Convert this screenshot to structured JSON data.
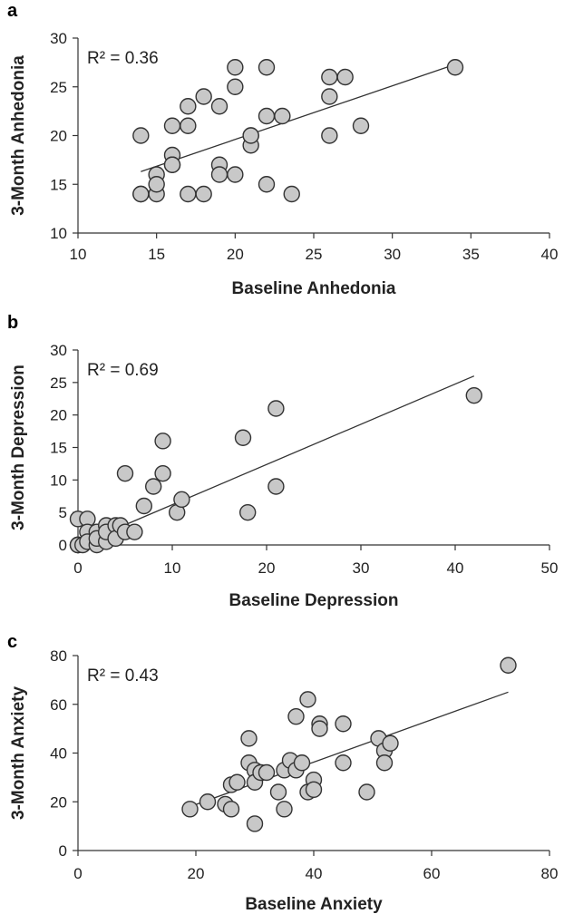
{
  "chart_data": [
    {
      "type": "scatter",
      "panel_label": "a",
      "annotation": "R² = 0.36",
      "xlabel": "Baseline Anhedonia",
      "ylabel": "3-Month Anhedonia",
      "xlim": [
        10,
        40
      ],
      "ylim": [
        10,
        30
      ],
      "xticks": [
        10,
        15,
        20,
        25,
        30,
        35,
        40
      ],
      "yticks": [
        10,
        15,
        20,
        25,
        30
      ],
      "trendline": {
        "x": [
          14,
          34
        ],
        "y": [
          16.3,
          27.3
        ]
      },
      "points": [
        [
          14,
          20
        ],
        [
          14,
          14
        ],
        [
          14,
          14
        ],
        [
          15,
          16
        ],
        [
          15,
          14
        ],
        [
          15,
          15
        ],
        [
          16,
          21
        ],
        [
          16,
          18
        ],
        [
          16,
          17
        ],
        [
          16,
          17
        ],
        [
          17,
          23
        ],
        [
          17,
          21
        ],
        [
          17,
          14
        ],
        [
          18,
          24
        ],
        [
          18,
          14
        ],
        [
          19,
          23
        ],
        [
          19,
          17
        ],
        [
          19,
          16
        ],
        [
          20,
          27
        ],
        [
          20,
          25
        ],
        [
          20,
          16
        ],
        [
          21,
          20
        ],
        [
          21,
          19
        ],
        [
          21,
          20
        ],
        [
          22,
          27
        ],
        [
          22,
          22
        ],
        [
          22,
          15
        ],
        [
          23,
          22
        ],
        [
          23.6,
          14
        ],
        [
          26,
          26
        ],
        [
          26,
          24
        ],
        [
          26,
          20
        ],
        [
          27,
          26
        ],
        [
          28,
          21
        ],
        [
          34,
          27
        ]
      ]
    },
    {
      "type": "scatter",
      "panel_label": "b",
      "annotation": "R² = 0.69",
      "xlabel": "Baseline Depression",
      "ylabel": "3-Month Depression",
      "xlim": [
        0,
        50
      ],
      "ylim": [
        0,
        30
      ],
      "xticks": [
        0,
        10,
        20,
        30,
        40,
        50
      ],
      "yticks": [
        0,
        5,
        10,
        15,
        20,
        25,
        30
      ],
      "trendline": {
        "x": [
          0,
          42
        ],
        "y": [
          0,
          26
        ]
      },
      "points": [
        [
          0,
          4
        ],
        [
          0,
          0
        ],
        [
          0,
          0
        ],
        [
          0,
          0
        ],
        [
          0.5,
          0
        ],
        [
          1,
          4
        ],
        [
          1,
          2
        ],
        [
          1,
          0.5
        ],
        [
          2,
          2
        ],
        [
          2,
          0
        ],
        [
          2,
          1
        ],
        [
          3,
          3
        ],
        [
          3,
          0.5
        ],
        [
          3,
          2
        ],
        [
          4,
          3
        ],
        [
          4,
          1
        ],
        [
          4.5,
          3
        ],
        [
          5,
          2
        ],
        [
          5,
          11
        ],
        [
          6,
          2
        ],
        [
          7,
          6
        ],
        [
          8,
          9
        ],
        [
          9,
          16
        ],
        [
          9,
          11
        ],
        [
          10.5,
          5
        ],
        [
          11,
          7
        ],
        [
          17.5,
          16.5
        ],
        [
          18,
          5
        ],
        [
          21,
          21
        ],
        [
          21,
          9
        ],
        [
          42,
          23
        ]
      ]
    },
    {
      "type": "scatter",
      "panel_label": "c",
      "annotation": "R² = 0.43",
      "xlabel": "Baseline Anxiety",
      "ylabel": "3-Month Anxiety",
      "xlim": [
        0,
        80
      ],
      "ylim": [
        0,
        80
      ],
      "xticks": [
        0,
        20,
        40,
        60,
        80
      ],
      "yticks": [
        0,
        20,
        40,
        60,
        80
      ],
      "trendline": {
        "x": [
          19,
          73
        ],
        "y": [
          18,
          65
        ]
      },
      "points": [
        [
          19,
          17
        ],
        [
          22,
          20
        ],
        [
          25,
          19
        ],
        [
          26,
          27
        ],
        [
          26,
          17
        ],
        [
          27,
          28
        ],
        [
          29,
          46
        ],
        [
          29,
          36
        ],
        [
          30,
          33
        ],
        [
          30,
          28
        ],
        [
          30,
          11
        ],
        [
          31,
          32
        ],
        [
          32,
          32
        ],
        [
          34,
          24
        ],
        [
          35,
          17
        ],
        [
          35,
          33
        ],
        [
          36,
          37
        ],
        [
          37,
          55
        ],
        [
          37,
          33
        ],
        [
          38,
          36
        ],
        [
          39,
          62
        ],
        [
          39,
          24
        ],
        [
          40,
          29
        ],
        [
          40,
          25
        ],
        [
          41,
          52
        ],
        [
          41,
          50
        ],
        [
          45,
          52
        ],
        [
          45,
          36
        ],
        [
          49,
          24
        ],
        [
          51,
          46
        ],
        [
          52,
          41
        ],
        [
          52,
          36
        ],
        [
          53,
          44
        ],
        [
          73,
          76
        ]
      ]
    }
  ]
}
